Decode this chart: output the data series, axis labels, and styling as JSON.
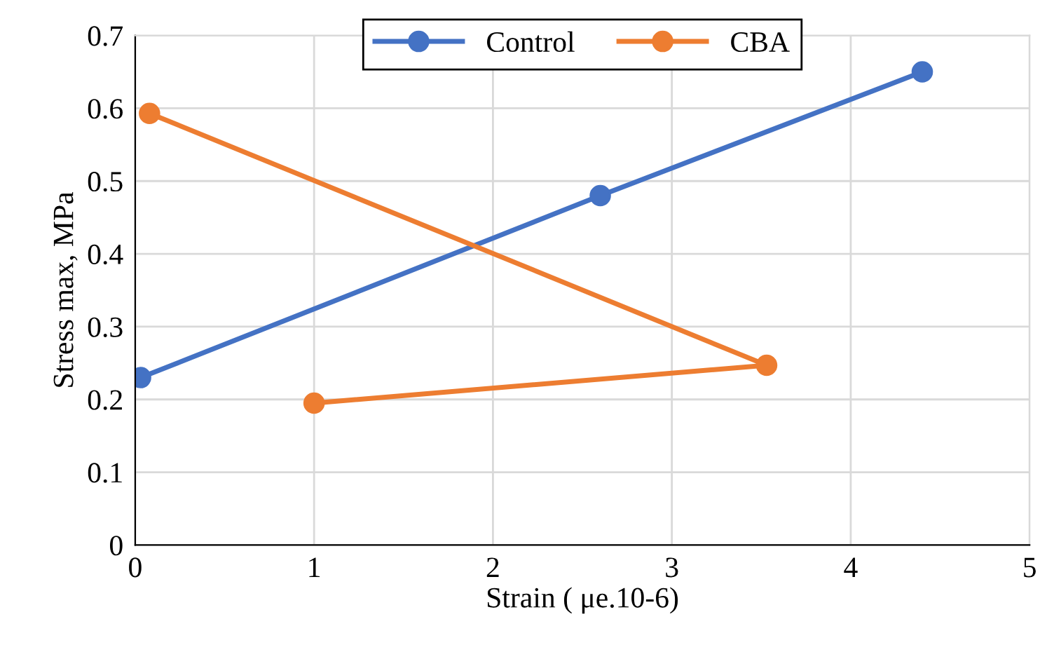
{
  "chart_data": {
    "type": "line",
    "xlabel": "Strain ( μe.10-6)",
    "ylabel": "Stress max, MPa",
    "xlim": [
      0,
      5
    ],
    "xticks": [
      0,
      1,
      2,
      3,
      4,
      5
    ],
    "ylim": [
      0,
      0.7
    ],
    "yticks": [
      0,
      0.1,
      0.2,
      0.3,
      0.4,
      0.5,
      0.6,
      0.7
    ],
    "grid": true,
    "legend": "top",
    "marker": "circle",
    "line_style": "solid",
    "series": [
      {
        "name": "Control",
        "color": "#4472c4",
        "x": [
          0.03,
          2.6,
          4.4
        ],
        "values": [
          0.23,
          0.48,
          0.65
        ]
      },
      {
        "name": "CBA",
        "color": "#ed7d31",
        "x": [
          0.08,
          3.53,
          1.0
        ],
        "values": [
          0.593,
          0.247,
          0.195
        ]
      }
    ]
  }
}
